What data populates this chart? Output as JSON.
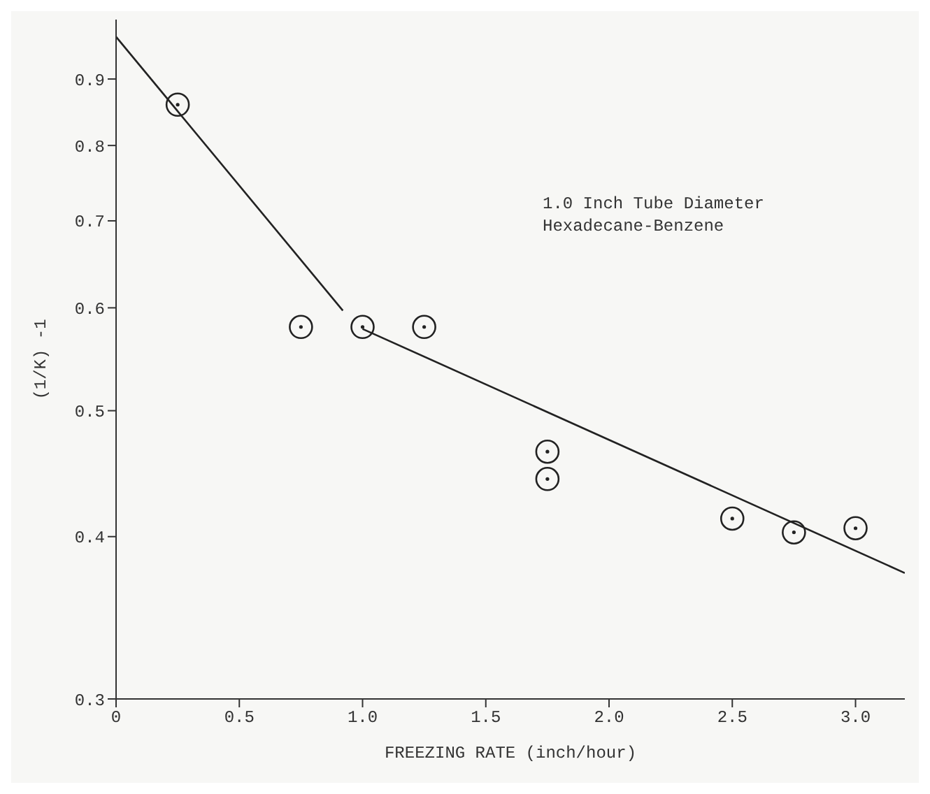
{
  "chart_data": {
    "type": "scatter",
    "xlabel": "FREEZING RATE (inch/hour)",
    "ylabel": "(1/K) -1",
    "annotations": [
      "1.0 Inch Tube Diameter",
      "Hexadecane-Benzene"
    ],
    "log": "y",
    "legend": false,
    "grid": false,
    "xlim": [
      0,
      3.2
    ],
    "xticks": [
      0,
      0.5,
      {
        "value": 1,
        "label": "1.0"
      },
      1.5,
      {
        "value": 2,
        "label": "2.0"
      },
      2.5,
      {
        "value": 3,
        "label": "3.0"
      }
    ],
    "ylim": [
      0.3,
      1.0
    ],
    "yticks": [
      0.3,
      0.4,
      0.5,
      0.6,
      0.7,
      0.8,
      0.9
    ],
    "series": [
      {
        "marker": "circle",
        "color": "#222222",
        "x": [
          0.25,
          0.75,
          1.0,
          1.25,
          1.75,
          1.75,
          2.5,
          2.75,
          3.0
        ],
        "values": [
          0.86,
          0.58,
          0.58,
          0.58,
          0.465,
          0.443,
          0.413,
          0.403,
          0.406
        ]
      },
      {
        "type": "line",
        "color": "#222222",
        "x": [
          0,
          0.92
        ],
        "values": [
          0.97,
          0.597
        ]
      },
      {
        "type": "line",
        "color": "#222222",
        "x": [
          1.0,
          3.2
        ],
        "values": [
          0.578,
          0.375
        ]
      }
    ]
  }
}
